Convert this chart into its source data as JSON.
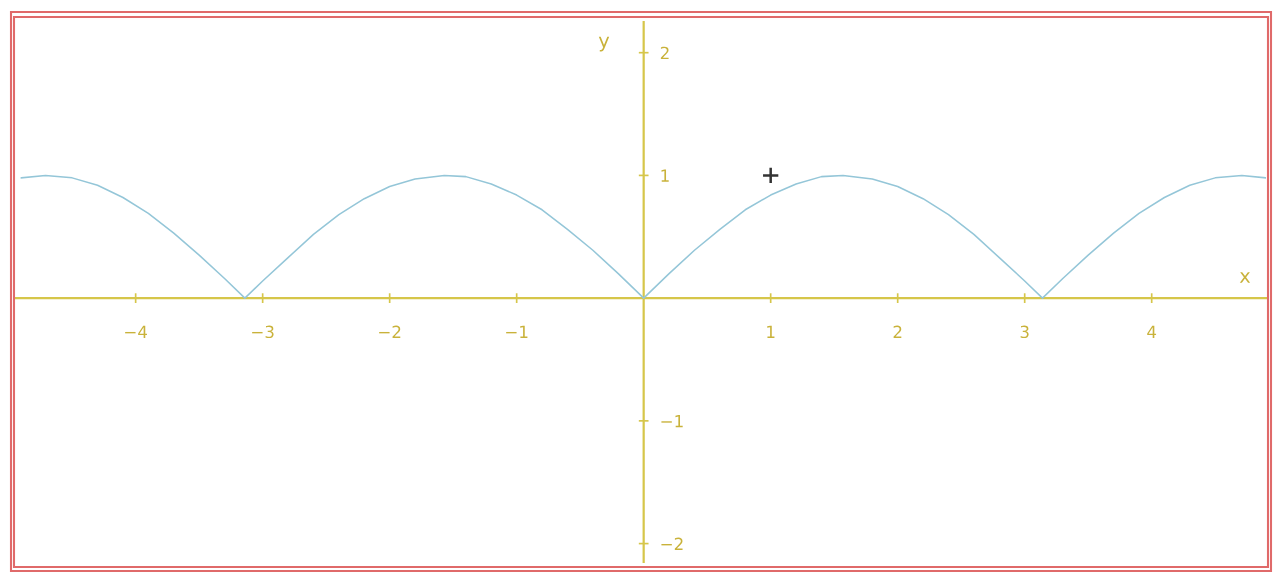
{
  "chart_data": {
    "type": "line",
    "xlabel": "x",
    "ylabel": "y",
    "xlim": [
      -4.95,
      4.9
    ],
    "ylim": [
      -2.15,
      2.25
    ],
    "xticks": [
      -4,
      -3,
      -2,
      -1,
      1,
      2,
      3,
      4
    ],
    "yticks": [
      -2,
      -1,
      1,
      2
    ],
    "series": [
      {
        "color": "#94c6d8",
        "marker": "none",
        "line_style": "solid",
        "x": [
          -4.9,
          -4.71,
          -4.5,
          -4.3,
          -4.1,
          -3.9,
          -3.7,
          -3.5,
          -3.3,
          -3.14,
          -3.0,
          -2.8,
          -2.6,
          -2.4,
          -2.2,
          -2.0,
          -1.8,
          -1.57,
          -1.4,
          -1.2,
          -1.0,
          -0.8,
          -0.6,
          -0.4,
          -0.2,
          0,
          0.2,
          0.4,
          0.6,
          0.8,
          1.0,
          1.2,
          1.4,
          1.57,
          1.8,
          2.0,
          2.2,
          2.4,
          2.6,
          2.8,
          3.0,
          3.14,
          3.3,
          3.5,
          3.7,
          3.9,
          4.1,
          4.3,
          4.5,
          4.71,
          4.9
        ],
        "values": [
          0.98,
          1.0,
          0.98,
          0.92,
          0.82,
          0.69,
          0.53,
          0.35,
          0.16,
          0.0,
          0.14,
          0.33,
          0.52,
          0.68,
          0.81,
          0.91,
          0.97,
          1.0,
          0.99,
          0.93,
          0.84,
          0.72,
          0.56,
          0.39,
          0.2,
          0,
          0.2,
          0.39,
          0.56,
          0.72,
          0.84,
          0.93,
          0.99,
          1.0,
          0.97,
          0.91,
          0.81,
          0.68,
          0.52,
          0.33,
          0.14,
          0.0,
          0.16,
          0.35,
          0.53,
          0.69,
          0.82,
          0.92,
          0.98,
          1.0,
          0.98
        ]
      },
      {
        "type": "scatter",
        "color": "#333333",
        "marker": "cross",
        "x": [
          1
        ],
        "values": [
          1
        ]
      }
    ]
  }
}
